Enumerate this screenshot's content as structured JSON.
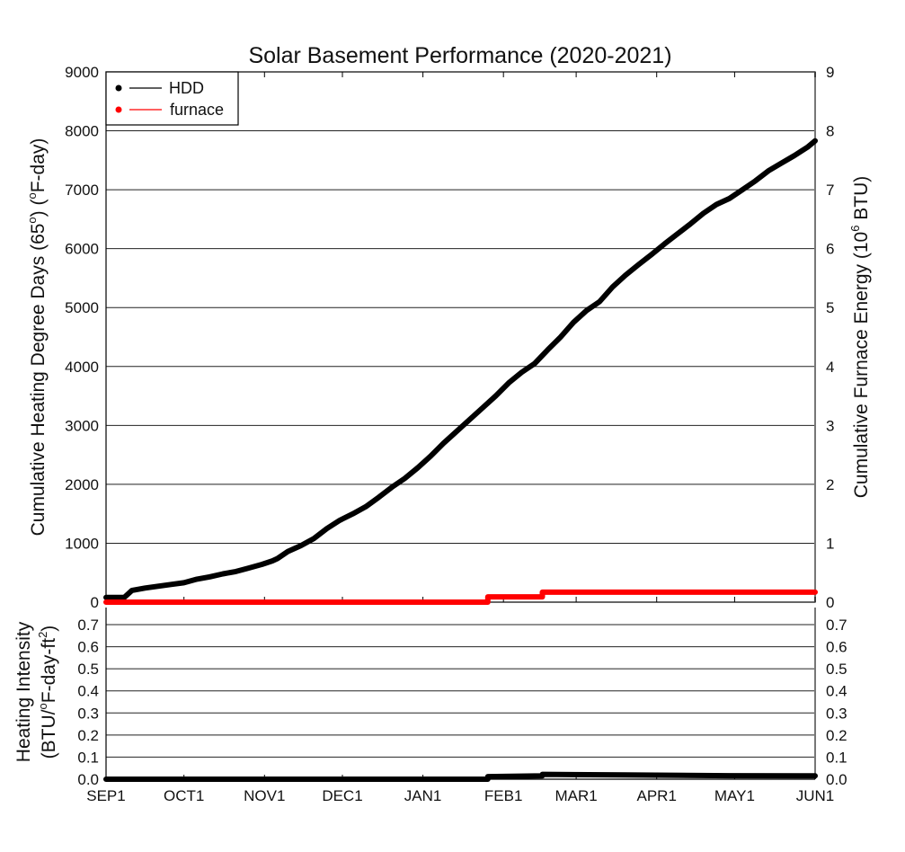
{
  "chart_data": [
    {
      "type": "line",
      "title": "Solar Basement Performance (2020-2021)",
      "xlabel": "",
      "ylabel": "Cumulative Heating Degree Days (65°) (°F-day)",
      "ylabel_parts": {
        "pre": "Cumulative Heating Degree Days (65",
        "deg1": "o",
        "mid": ") (",
        "deg2": "o",
        "post": "F-day)"
      },
      "y2label": "Cumulative Furnace Energy (10^6 BTU)",
      "y2label_parts": {
        "pre": "Cumulative Furnace Energy (10",
        "sup": "6",
        "post": " BTU)"
      },
      "x_unit": "days since SEP1",
      "xlim": [
        0,
        273
      ],
      "ylim": [
        0,
        9000
      ],
      "y2lim": [
        0,
        9
      ],
      "x_tick_labels": [
        "SEP1",
        "OCT1",
        "NOV1",
        "DEC1",
        "JAN1",
        "FEB1",
        "MAR1",
        "APR1",
        "MAY1",
        "JUN1"
      ],
      "x_tick_values": [
        0,
        30,
        61,
        91,
        122,
        153,
        181,
        212,
        242,
        273
      ],
      "y_tick_labels": [
        "0",
        "1000",
        "2000",
        "3000",
        "4000",
        "5000",
        "6000",
        "7000",
        "8000",
        "9000"
      ],
      "y_tick_values": [
        0,
        1000,
        2000,
        3000,
        4000,
        5000,
        6000,
        7000,
        8000,
        9000
      ],
      "y2_tick_labels": [
        "0",
        "1",
        "2",
        "3",
        "4",
        "5",
        "6",
        "7",
        "8",
        "9"
      ],
      "y2_tick_values": [
        0,
        1,
        2,
        3,
        4,
        5,
        6,
        7,
        8,
        9
      ],
      "grid": true,
      "legend": {
        "position": "top-left",
        "entries": [
          {
            "label": "HDD",
            "color": "#000000"
          },
          {
            "label": "furnace",
            "color": "#ff0000"
          }
        ]
      },
      "series": [
        {
          "name": "HDD",
          "axis": "left",
          "color": "#000000",
          "x": [
            0,
            7,
            10,
            15,
            20,
            25,
            30,
            35,
            40,
            45,
            50,
            55,
            60,
            64,
            66,
            70,
            75,
            80,
            85,
            90,
            95,
            100,
            105,
            110,
            115,
            120,
            125,
            130,
            135,
            140,
            145,
            150,
            155,
            160,
            165,
            170,
            175,
            180,
            185,
            190,
            195,
            200,
            205,
            210,
            215,
            220,
            225,
            230,
            235,
            240,
            245,
            250,
            255,
            260,
            265,
            270,
            273
          ],
          "y": [
            80,
            80,
            200,
            240,
            270,
            300,
            330,
            390,
            430,
            480,
            520,
            580,
            640,
            700,
            740,
            860,
            960,
            1080,
            1250,
            1390,
            1500,
            1620,
            1780,
            1950,
            2100,
            2280,
            2480,
            2700,
            2900,
            3100,
            3300,
            3500,
            3720,
            3900,
            4050,
            4280,
            4500,
            4750,
            4950,
            5100,
            5350,
            5550,
            5730,
            5900,
            6080,
            6250,
            6420,
            6600,
            6750,
            6850,
            7000,
            7150,
            7320,
            7450,
            7580,
            7720,
            7830
          ]
        },
        {
          "name": "furnace",
          "axis": "right",
          "color": "#ff0000",
          "x": [
            0,
            147,
            147,
            168,
            168,
            273
          ],
          "y": [
            0,
            0,
            0.09,
            0.09,
            0.17,
            0.17
          ]
        }
      ]
    },
    {
      "type": "line",
      "title": "",
      "ylabel": "Heating Intensity (BTU/°F-day-ft²)",
      "ylabel_parts": {
        "line1": "Heating Intensity",
        "pre": "(BTU/",
        "deg": "o",
        "mid": "F-day-ft",
        "sup": "2",
        "post": ")"
      },
      "xlim": [
        0,
        273
      ],
      "ylim": [
        0,
        0.75
      ],
      "x_tick_labels": [
        "SEP1",
        "OCT1",
        "NOV1",
        "DEC1",
        "JAN1",
        "FEB1",
        "MAR1",
        "APR1",
        "MAY1",
        "JUN1"
      ],
      "x_tick_values": [
        0,
        30,
        61,
        91,
        122,
        153,
        181,
        212,
        242,
        273
      ],
      "y_tick_labels": [
        "0.0",
        "0.1",
        "0.2",
        "0.3",
        "0.4",
        "0.5",
        "0.6",
        "0.7"
      ],
      "y_tick_values": [
        0,
        0.1,
        0.2,
        0.3,
        0.4,
        0.5,
        0.6,
        0.7
      ],
      "y2_tick_labels": [
        "0.0",
        "0.1",
        "0.2",
        "0.3",
        "0.4",
        "0.5",
        "0.6",
        "0.7"
      ],
      "grid": true,
      "series": [
        {
          "name": "intensity",
          "color": "#000000",
          "x": [
            0,
            147,
            147,
            168,
            168,
            200,
            240,
            273
          ],
          "y": [
            0,
            0,
            0.012,
            0.015,
            0.022,
            0.019,
            0.016,
            0.015
          ]
        }
      ]
    }
  ]
}
